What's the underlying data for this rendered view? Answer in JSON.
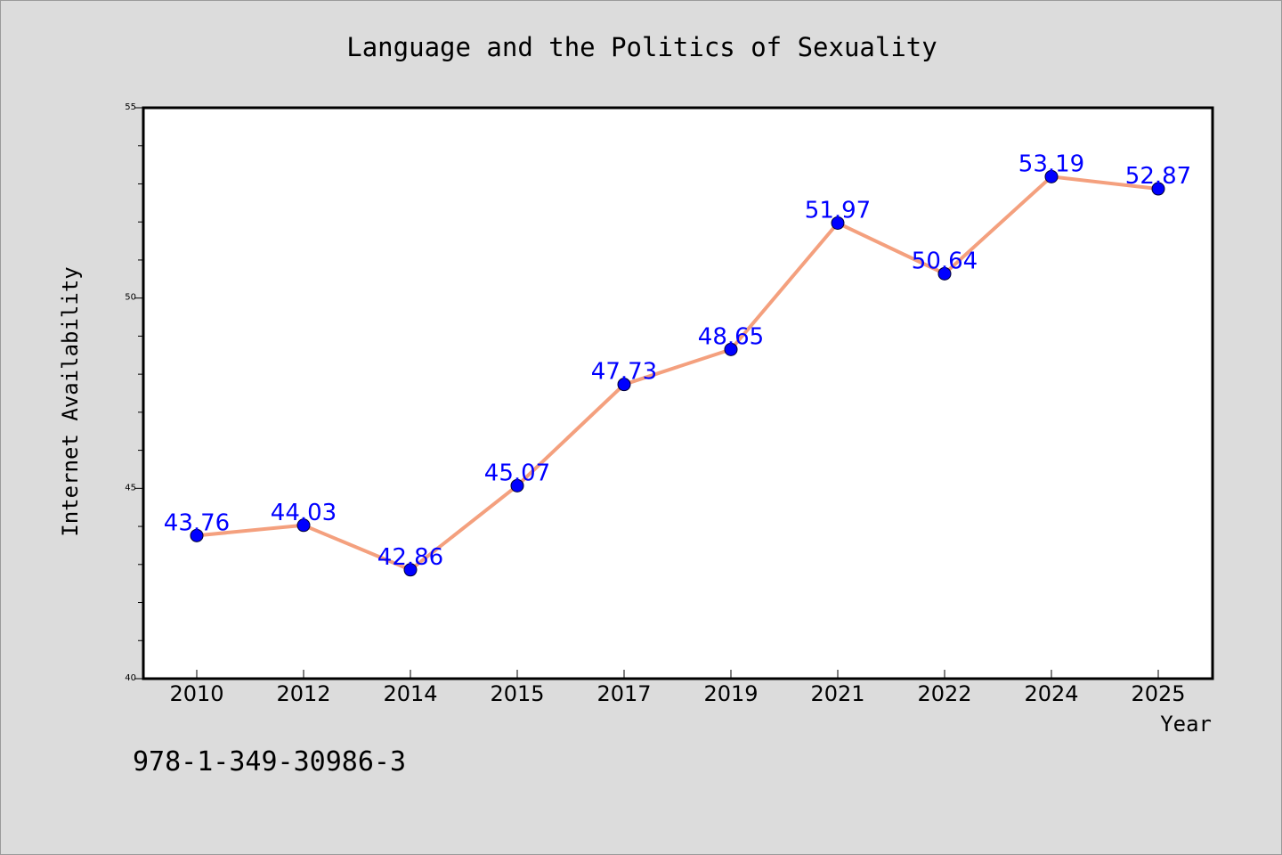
{
  "chart_data": {
    "type": "line",
    "title": "Language and the Politics of Sexuality",
    "xlabel": "Year",
    "ylabel": "Internet Availability",
    "categories": [
      "2010",
      "2012",
      "2014",
      "2015",
      "2017",
      "2019",
      "2021",
      "2022",
      "2024",
      "2025"
    ],
    "values": [
      43.76,
      44.03,
      42.86,
      45.07,
      47.73,
      48.65,
      51.97,
      50.64,
      53.19,
      52.87
    ],
    "data_labels": [
      "43.76",
      "44.03",
      "42.86",
      "45.07",
      "47.73",
      "48.65",
      "51.97",
      "50.64",
      "53.19",
      "52.87"
    ],
    "ylim": [
      40,
      55
    ],
    "y_major_ticks": [
      40,
      45,
      50,
      55
    ],
    "y_tick_labels": [
      "40",
      "45",
      "50",
      "55"
    ],
    "y_minor_step": 1,
    "grid": false,
    "legend": "none",
    "colors": {
      "background": "#dcdcdc",
      "plot_background": "#ffffff",
      "line": "#f4a07e",
      "marker": "#0000ff",
      "data_label": "#0000ff",
      "text": "#000000"
    }
  },
  "footer": {
    "isbn": "978-1-349-30986-3"
  }
}
